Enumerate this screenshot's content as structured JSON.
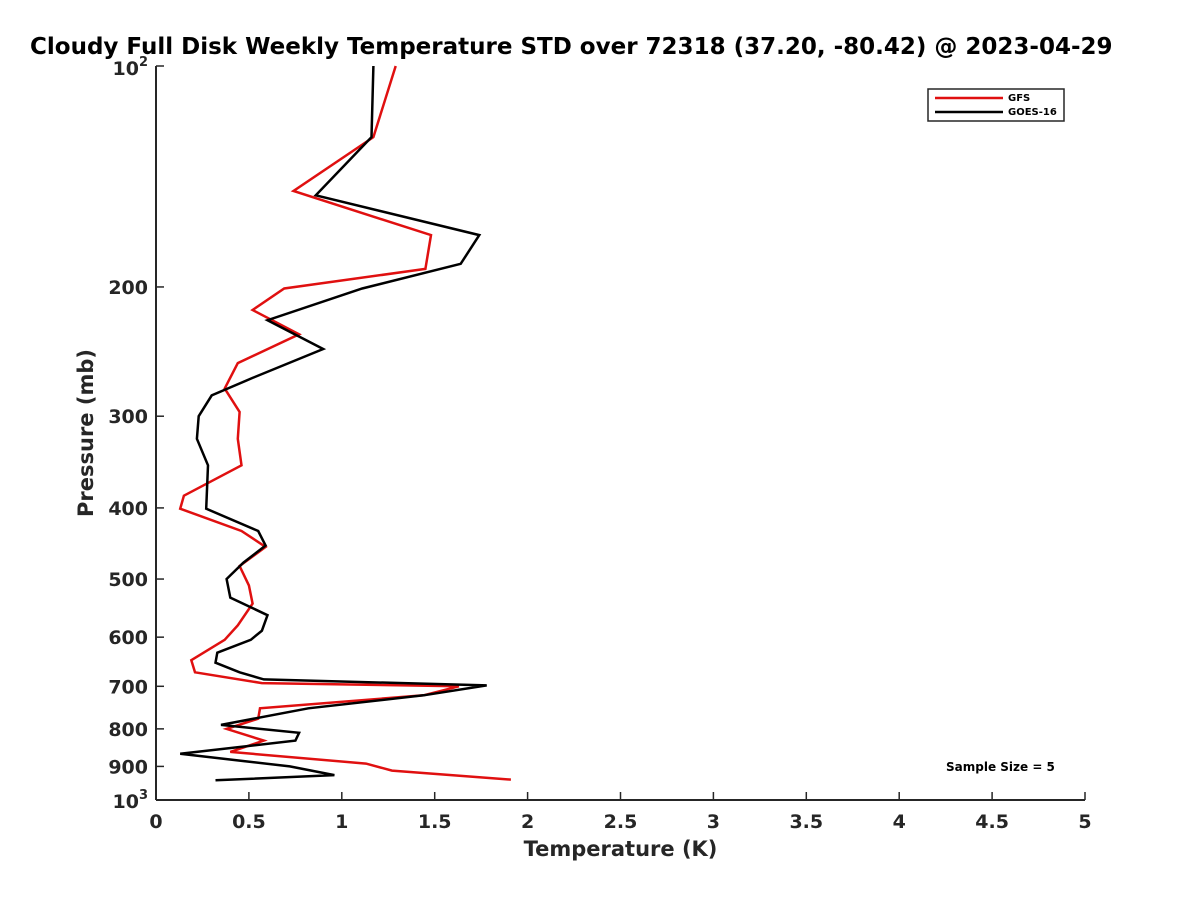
{
  "chart_data": {
    "type": "line",
    "title": "Cloudy Full Disk Weekly Temperature STD over 72318 (37.20, -80.42) @ 2023-04-29",
    "xlabel": "Temperature (K)",
    "ylabel": "Pressure (mb)",
    "xlim": [
      0,
      5
    ],
    "ylim": [
      100,
      1000
    ],
    "yscale": "log",
    "y_reversed": true,
    "grid": false,
    "legend_position": "top-right",
    "x_ticks": [
      {
        "value": 0,
        "label": "0"
      },
      {
        "value": 0.5,
        "label": "0.5"
      },
      {
        "value": 1,
        "label": "1"
      },
      {
        "value": 1.5,
        "label": "1.5"
      },
      {
        "value": 2,
        "label": "2"
      },
      {
        "value": 2.5,
        "label": "2.5"
      },
      {
        "value": 3,
        "label": "3"
      },
      {
        "value": 3.5,
        "label": "3.5"
      },
      {
        "value": 4,
        "label": "4"
      },
      {
        "value": 4.5,
        "label": "4.5"
      },
      {
        "value": 5,
        "label": "5"
      }
    ],
    "y_ticks": [
      {
        "value": 100,
        "base": "10",
        "exp": "2"
      },
      {
        "value": 200,
        "base": "200",
        "exp": ""
      },
      {
        "value": 300,
        "base": "300",
        "exp": ""
      },
      {
        "value": 400,
        "base": "400",
        "exp": ""
      },
      {
        "value": 500,
        "base": "500",
        "exp": ""
      },
      {
        "value": 600,
        "base": "600",
        "exp": ""
      },
      {
        "value": 700,
        "base": "700",
        "exp": ""
      },
      {
        "value": 800,
        "base": "800",
        "exp": ""
      },
      {
        "value": 900,
        "base": "900",
        "exp": ""
      },
      {
        "value": 1000,
        "base": "10",
        "exp": "3"
      }
    ],
    "series": [
      {
        "name": "GFS",
        "color": "#e01010",
        "points": [
          [
            1.29,
            100
          ],
          [
            1.17,
            125
          ],
          [
            0.74,
            148
          ],
          [
            1.48,
            170
          ],
          [
            1.45,
            189
          ],
          [
            0.69,
            201
          ],
          [
            0.52,
            215
          ],
          [
            0.77,
            232
          ],
          [
            0.44,
            254
          ],
          [
            0.37,
            275
          ],
          [
            0.45,
            296
          ],
          [
            0.44,
            322
          ],
          [
            0.46,
            350
          ],
          [
            0.15,
            385
          ],
          [
            0.13,
            401
          ],
          [
            0.46,
            430
          ],
          [
            0.59,
            452
          ],
          [
            0.45,
            480
          ],
          [
            0.5,
            510
          ],
          [
            0.52,
            540
          ],
          [
            0.44,
            578
          ],
          [
            0.37,
            605
          ],
          [
            0.19,
            645
          ],
          [
            0.21,
            670
          ],
          [
            0.57,
            693
          ],
          [
            1.63,
            700
          ],
          [
            1.44,
            720
          ],
          [
            0.56,
            750
          ],
          [
            0.55,
            775
          ],
          [
            0.38,
            800
          ],
          [
            0.58,
            830
          ],
          [
            0.4,
            860
          ],
          [
            1.13,
            892
          ],
          [
            1.27,
            912
          ],
          [
            1.91,
            938
          ]
        ]
      },
      {
        "name": "GOES-16",
        "color": "#000000",
        "points": [
          [
            1.17,
            100
          ],
          [
            1.16,
            125
          ],
          [
            0.86,
            150
          ],
          [
            1.74,
            170
          ],
          [
            1.64,
            186
          ],
          [
            1.11,
            201
          ],
          [
            0.6,
            222
          ],
          [
            0.9,
            243
          ],
          [
            0.52,
            266
          ],
          [
            0.3,
            281
          ],
          [
            0.23,
            300
          ],
          [
            0.22,
            322
          ],
          [
            0.28,
            350
          ],
          [
            0.27,
            401
          ],
          [
            0.55,
            430
          ],
          [
            0.59,
            450
          ],
          [
            0.47,
            475
          ],
          [
            0.38,
            500
          ],
          [
            0.4,
            530
          ],
          [
            0.6,
            560
          ],
          [
            0.57,
            588
          ],
          [
            0.51,
            605
          ],
          [
            0.33,
            630
          ],
          [
            0.32,
            650
          ],
          [
            0.45,
            670
          ],
          [
            0.58,
            685
          ],
          [
            1.78,
            698
          ],
          [
            1.44,
            720
          ],
          [
            0.82,
            750
          ],
          [
            0.35,
            790
          ],
          [
            0.77,
            810
          ],
          [
            0.75,
            830
          ],
          [
            0.13,
            865
          ],
          [
            0.72,
            900
          ],
          [
            0.96,
            925
          ],
          [
            0.32,
            940
          ]
        ]
      }
    ],
    "annotation": "Sample Size = 5"
  }
}
